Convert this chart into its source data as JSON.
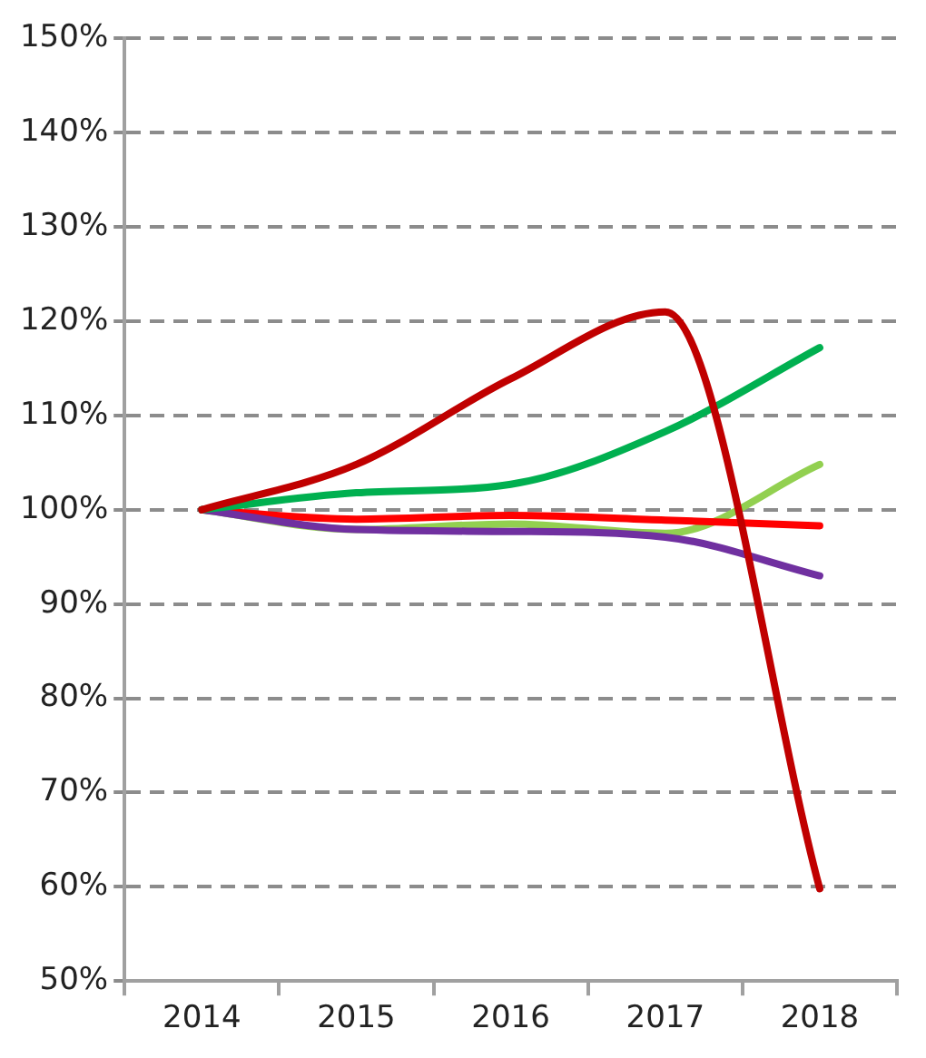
{
  "chart_data": {
    "type": "line",
    "categories": [
      "2014",
      "2015",
      "2016",
      "2017",
      "2018"
    ],
    "series": [
      {
        "color": "#c00000",
        "values": [
          100,
          104.8,
          113.9,
          121,
          59.8
        ]
      },
      {
        "color": "#00b050",
        "values": [
          100,
          101.8,
          102.7,
          108.3,
          117.2
        ]
      },
      {
        "color": "#7030a0",
        "values": [
          100,
          97.9,
          97.7,
          97.1,
          93
        ]
      },
      {
        "color": "#ff0000",
        "values": [
          100,
          99,
          99.4,
          98.9,
          98.3
        ]
      },
      {
        "color": "#92d050",
        "values": [
          100,
          97.9,
          98.5,
          97.5,
          104.8
        ]
      }
    ],
    "ylim": [
      50,
      150
    ],
    "yticks": [
      {
        "value": 50,
        "label": "50%"
      },
      {
        "value": 60,
        "label": "60%"
      },
      {
        "value": 70,
        "label": "70%"
      },
      {
        "value": 80,
        "label": "80%"
      },
      {
        "value": 90,
        "label": "90%"
      },
      {
        "value": 100,
        "label": "100%"
      },
      {
        "value": 110,
        "label": "110%"
      },
      {
        "value": 120,
        "label": "120%"
      },
      {
        "value": 130,
        "label": "130%"
      },
      {
        "value": 140,
        "label": "140%"
      },
      {
        "value": 150,
        "label": "150%"
      }
    ],
    "grid": "y",
    "legend": false,
    "marker": "none",
    "line_style": "solid"
  }
}
